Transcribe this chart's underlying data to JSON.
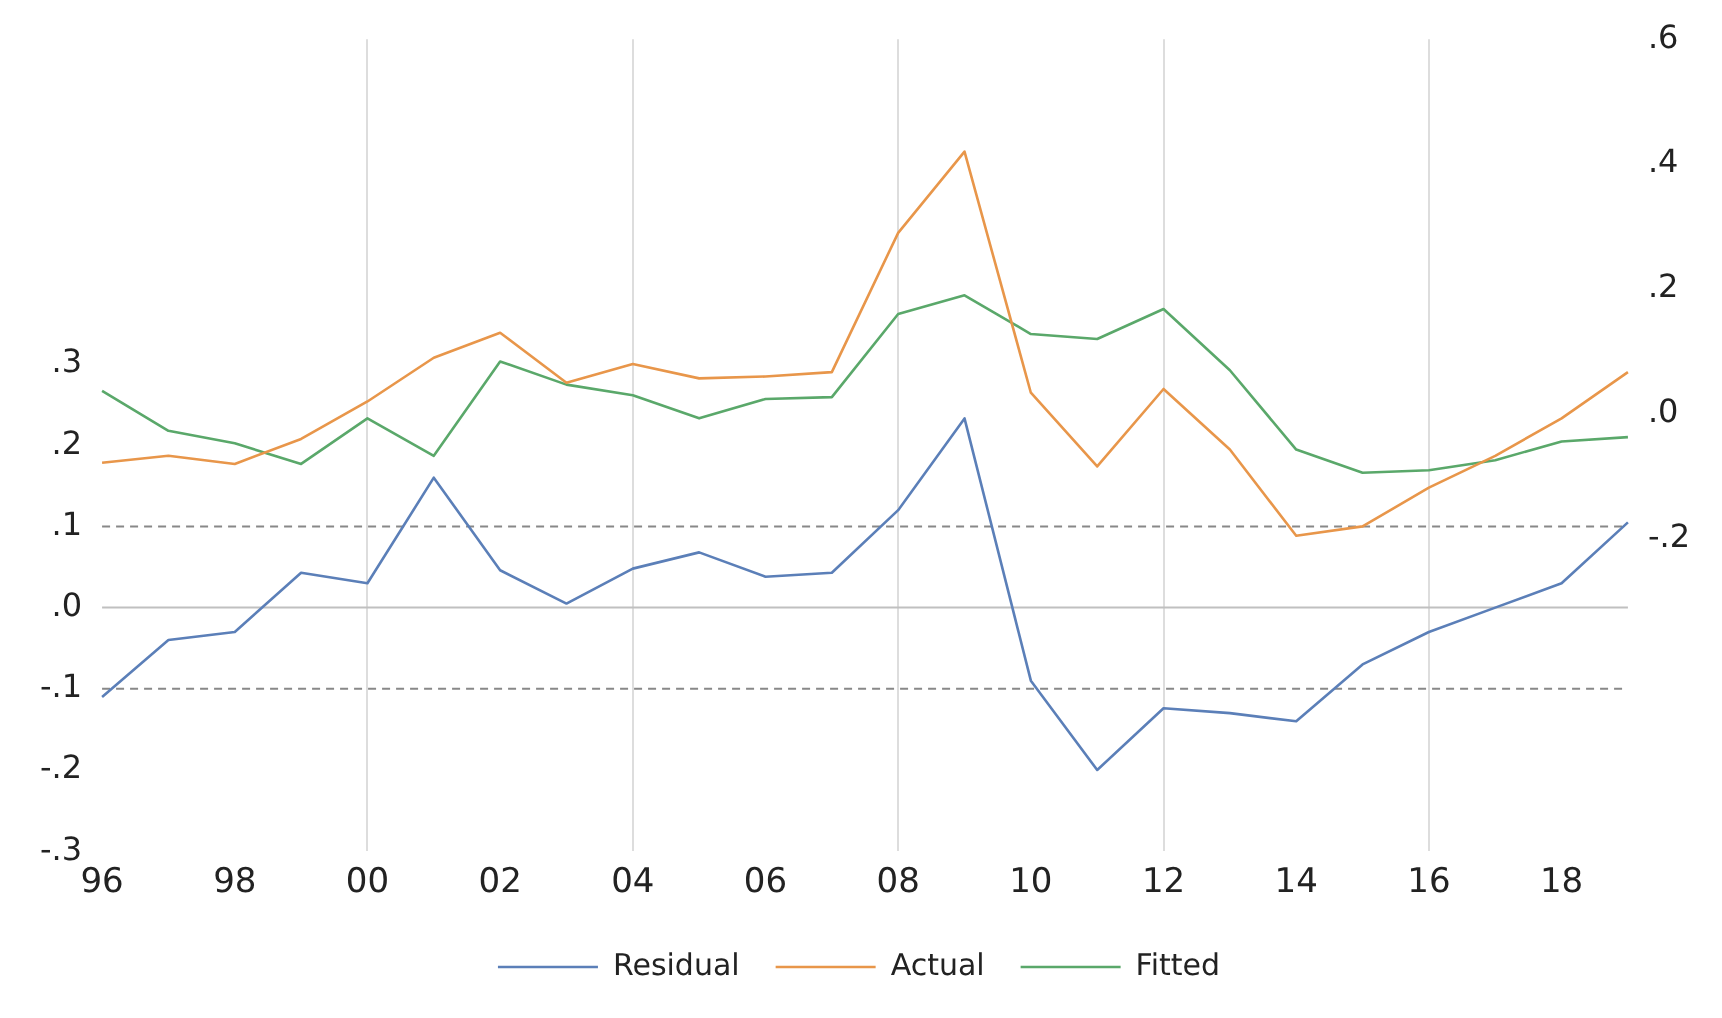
{
  "chart_data": {
    "type": "line",
    "categories": [
      "96",
      null,
      "98",
      null,
      "00",
      null,
      "02",
      null,
      "04",
      null,
      "06",
      null,
      "08",
      null,
      "10",
      null,
      "12",
      null,
      "14",
      null,
      "16",
      null,
      "18",
      null
    ],
    "series": [
      {
        "name": "Residual",
        "color": "#5b7fb8",
        "values": [
          -0.11,
          -0.04,
          -0.03,
          0.043,
          0.03,
          0.16,
          0.046,
          0.005,
          0.048,
          0.068,
          0.038,
          0.043,
          0.12,
          0.233,
          -0.09,
          -0.2,
          -0.124,
          -0.13,
          -0.14,
          -0.07,
          -0.03,
          0.0,
          0.03,
          0.105
        ]
      },
      {
        "name": "Actual",
        "color": "#e8964a",
        "axis": "y2",
        "values": [
          -0.078,
          -0.067,
          -0.08,
          -0.04,
          0.02,
          0.09,
          0.13,
          0.05,
          0.08,
          0.057,
          0.06,
          0.067,
          0.29,
          0.42,
          0.034,
          -0.084,
          0.04,
          -0.057,
          -0.195,
          -0.18,
          -0.118,
          -0.067,
          -0.007,
          0.067
        ]
      },
      {
        "name": "Fitted",
        "color": "#5aa86a",
        "axis": "y2",
        "values": [
          0.037,
          -0.027,
          -0.047,
          -0.08,
          -0.007,
          -0.067,
          0.084,
          0.047,
          0.03,
          -0.007,
          0.024,
          0.027,
          0.16,
          0.19,
          0.128,
          0.12,
          0.168,
          0.07,
          -0.057,
          -0.094,
          -0.09,
          -0.074,
          -0.044,
          -0.037
        ]
      }
    ],
    "ylim": [
      -0.3,
      0.7
    ],
    "yticks": [
      {
        "value": -0.3,
        "label": "-.3"
      },
      {
        "value": -0.2,
        "label": "-.2"
      },
      {
        "value": -0.1,
        "label": "-.1"
      },
      {
        "value": 0,
        "label": ".0"
      },
      {
        "value": 0.1,
        "label": ".1"
      },
      {
        "value": 0.2,
        "label": ".2"
      },
      {
        "value": 0.3,
        "label": ".3"
      }
    ],
    "y2lim": [
      -0.7,
      0.6
    ],
    "y2ticks": [
      {
        "value": -0.2,
        "label": "-.2"
      },
      {
        "value": 0,
        "label": ".0"
      },
      {
        "value": 0.2,
        "label": ".2"
      },
      {
        "value": 0.4,
        "label": ".4"
      },
      {
        "value": 0.6,
        "label": ".6"
      }
    ],
    "ref_lines": [
      {
        "axis": "y",
        "value": 0.1,
        "color": "#888888",
        "line_style": "dashed"
      },
      {
        "axis": "y",
        "value": 0,
        "color": "#c0c0c0",
        "line_style": "solid"
      },
      {
        "axis": "y",
        "value": -0.1,
        "color": "#888888",
        "line_style": "dashed"
      }
    ],
    "grid": "x",
    "legend": "bottom",
    "marker": "none",
    "line_style": "solid"
  }
}
